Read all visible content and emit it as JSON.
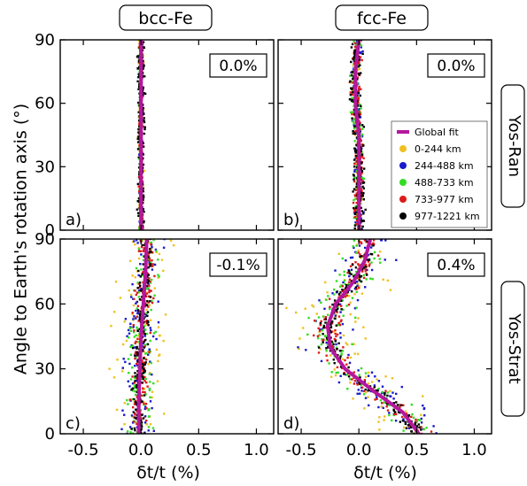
{
  "figure": {
    "ylabel": "Angle to Earth's rotation axis (°)",
    "xlabel": "δt/t (%)",
    "column_titles": [
      "bcc-Fe",
      "fcc-Fe"
    ],
    "row_titles": [
      "Yos-Ran",
      "Yos-Strat"
    ],
    "legend": {
      "entries": [
        {
          "label": "Global fit",
          "color": "#b5179e",
          "style": "line"
        },
        {
          "label": "0-244 km",
          "color": "#f0c020",
          "style": "dot"
        },
        {
          "label": "244-488 km",
          "color": "#1a1acc",
          "style": "dot"
        },
        {
          "label": "488-733 km",
          "color": "#33dd22",
          "style": "dot"
        },
        {
          "label": "733-977 km",
          "color": "#dd1a1a",
          "style": "dot"
        },
        {
          "label": "977-1221 km",
          "color": "#000000",
          "style": "dot"
        }
      ]
    }
  },
  "chart_data": [
    {
      "type": "scatter",
      "panel_label": "a)",
      "column_title": "bcc-Fe",
      "row_title": "Yos-Ran",
      "annotation": "0.0%",
      "xlim": [
        -0.7,
        1.15
      ],
      "ylim": [
        0,
        90
      ],
      "xticks": [
        "-0.5",
        "0.0",
        "0.5",
        "1.0"
      ],
      "yticks": [
        "0",
        "30",
        "60",
        "90"
      ],
      "show_xtick_labels": false,
      "scatter_spread": {
        "0-244 km": 0.03,
        "244-488 km": 0.02,
        "488-733 km": 0.02,
        "733-977 km": 0.02,
        "977-1221 km": 0.04
      },
      "global_fit": {
        "angle": [
          0,
          15,
          30,
          45,
          60,
          75,
          90
        ],
        "value": [
          0.0,
          0.0,
          0.0,
          0.0,
          0.0,
          0.0,
          0.0
        ]
      }
    },
    {
      "type": "scatter",
      "panel_label": "b)",
      "column_title": "fcc-Fe",
      "row_title": "Yos-Ran",
      "annotation": "0.0%",
      "xlim": [
        -0.7,
        1.15
      ],
      "ylim": [
        0,
        90
      ],
      "xticks": [
        "-0.5",
        "0.0",
        "0.5",
        "1.0"
      ],
      "yticks": [
        "0",
        "30",
        "60",
        "90"
      ],
      "show_xtick_labels": false,
      "show_legend": true,
      "scatter_spread": {
        "0-244 km": 0.04,
        "244-488 km": 0.05,
        "488-733 km": 0.05,
        "733-977 km": 0.05,
        "977-1221 km": 0.06
      },
      "global_fit": {
        "angle": [
          0,
          15,
          30,
          45,
          60,
          75,
          90
        ],
        "value": [
          0.0,
          0.0,
          0.0,
          0.0,
          -0.03,
          -0.03,
          0.0
        ]
      }
    },
    {
      "type": "scatter",
      "panel_label": "c)",
      "column_title": "bcc-Fe",
      "row_title": "Yos-Strat",
      "annotation": "-0.1%",
      "xlim": [
        -0.7,
        1.15
      ],
      "ylim": [
        0,
        90
      ],
      "xticks": [
        "-0.5",
        "0.0",
        "0.5",
        "1.0"
      ],
      "yticks": [
        "0",
        "30",
        "60",
        "90"
      ],
      "show_xtick_labels": true,
      "scatter_spread": {
        "0-244 km": 0.3,
        "244-488 km": 0.18,
        "488-733 km": 0.14,
        "733-977 km": 0.1,
        "977-1221 km": 0.07
      },
      "global_fit": {
        "angle": [
          0,
          15,
          30,
          45,
          60,
          75,
          90
        ],
        "value": [
          -0.02,
          -0.02,
          -0.01,
          0.0,
          0.02,
          0.04,
          0.05
        ]
      }
    },
    {
      "type": "scatter",
      "panel_label": "d)",
      "column_title": "fcc-Fe",
      "row_title": "Yos-Strat",
      "annotation": "0.4%",
      "xlim": [
        -0.7,
        1.15
      ],
      "ylim": [
        0,
        90
      ],
      "xticks": [
        "-0.5",
        "0.0",
        "0.5",
        "1.0"
      ],
      "yticks": [
        "0",
        "30",
        "60",
        "90"
      ],
      "show_xtick_labels": true,
      "scatter_spread": {
        "0-244 km": 0.45,
        "244-488 km": 0.32,
        "488-733 km": 0.22,
        "733-977 km": 0.14,
        "977-1221 km": 0.1
      },
      "global_fit": {
        "angle": [
          0,
          10,
          20,
          30,
          40,
          50,
          60,
          70,
          80,
          90
        ],
        "value": [
          0.52,
          0.38,
          0.12,
          -0.12,
          -0.25,
          -0.27,
          -0.2,
          -0.05,
          0.05,
          0.1
        ]
      }
    }
  ]
}
